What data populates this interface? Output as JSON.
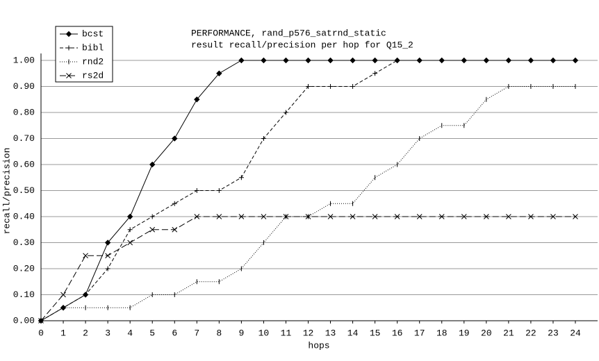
{
  "chart_data": {
    "type": "line",
    "title": "PERFORMANCE, rand_p576_satrnd_static",
    "subtitle": "result recall/precision per hop for Q15_2",
    "x_label": "hops",
    "y_label": "recall/precision",
    "x": [
      0,
      1,
      2,
      3,
      4,
      5,
      6,
      7,
      8,
      9,
      10,
      11,
      12,
      13,
      14,
      15,
      16,
      17,
      18,
      19,
      20,
      21,
      22,
      23,
      24
    ],
    "xlim": [
      0,
      24
    ],
    "xticks": [
      0,
      1,
      2,
      3,
      4,
      5,
      6,
      7,
      8,
      9,
      10,
      11,
      12,
      13,
      14,
      15,
      16,
      17,
      18,
      19,
      20,
      21,
      22,
      23,
      24
    ],
    "ylim": [
      0,
      1
    ],
    "yticks": [
      {
        "value": 0,
        "label": "0.00"
      },
      {
        "value": 0.1,
        "label": "0.10"
      },
      {
        "value": 0.2,
        "label": "0.20"
      },
      {
        "value": 0.3,
        "label": "0.30"
      },
      {
        "value": 0.4,
        "label": "0.40"
      },
      {
        "value": 0.5,
        "label": "0.50"
      },
      {
        "value": 0.6,
        "label": "0.60"
      },
      {
        "value": 0.7,
        "label": "0.70"
      },
      {
        "value": 0.8,
        "label": "0.80"
      },
      {
        "value": 0.9,
        "label": "0.90"
      },
      {
        "value": 1,
        "label": "1.00"
      }
    ],
    "grid": true,
    "legend": "upper left",
    "series": [
      {
        "name": "bcst",
        "color": "#000000",
        "linestyle": "solid",
        "marker": "diamond",
        "values": [
          0,
          0.05,
          0.1,
          0.3,
          0.4,
          0.6,
          0.7,
          0.85,
          0.95,
          1,
          1,
          1,
          1,
          1,
          1,
          1,
          1,
          1,
          1,
          1,
          1,
          1,
          1,
          1,
          1
        ]
      },
      {
        "name": "bibl",
        "color": "#000000",
        "linestyle": "dashed",
        "marker": "plus",
        "values": [
          0,
          0.05,
          0.1,
          0.2,
          0.35,
          0.4,
          0.45,
          0.5,
          0.5,
          0.55,
          0.7,
          0.8,
          0.9,
          0.9,
          0.9,
          0.95,
          1,
          1,
          1,
          1,
          1,
          1,
          1,
          1,
          1
        ]
      },
      {
        "name": "rnd2",
        "color": "#000000",
        "linestyle": "dotted",
        "marker": "vtick",
        "values": [
          0,
          0.05,
          0.05,
          0.05,
          0.05,
          0.1,
          0.1,
          0.15,
          0.15,
          0.2,
          0.3,
          0.4,
          0.4,
          0.45,
          0.45,
          0.55,
          0.6,
          0.7,
          0.75,
          0.75,
          0.85,
          0.9,
          0.9,
          0.9,
          0.9
        ]
      },
      {
        "name": "rs2d",
        "color": "#000000",
        "linestyle": "longdash",
        "marker": "cross",
        "values": [
          0,
          0.1,
          0.25,
          0.25,
          0.3,
          0.35,
          0.35,
          0.4,
          0.4,
          0.4,
          0.4,
          0.4,
          0.4,
          0.4,
          0.4,
          0.4,
          0.4,
          0.4,
          0.4,
          0.4,
          0.4,
          0.4,
          0.4,
          0.4,
          0.4
        ]
      }
    ]
  }
}
